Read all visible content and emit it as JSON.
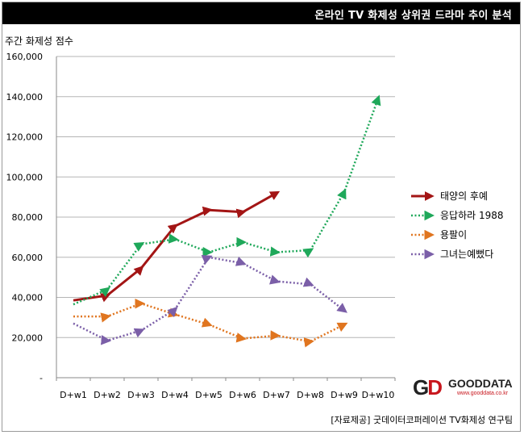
{
  "header": {
    "title": "온라인 TV 화제성 상위권 드라마 추이 분석"
  },
  "logo": {
    "mark": "GD",
    "name": "GOODDATA",
    "url": "www.gooddata.co.kr"
  },
  "source": "[자료제공] 굿데이터코퍼레이션 TV화제성 연구팀",
  "chart_data": {
    "type": "line",
    "title": "온라인 TV 화제성 상위권 드라마 추이 분석",
    "xlabel": "",
    "ylabel": "주간 화제성 점수",
    "categories": [
      "D+w1",
      "D+w2",
      "D+w3",
      "D+w4",
      "D+w5",
      "D+w6",
      "D+w7",
      "D+w8",
      "D+w9",
      "D+w10"
    ],
    "ylim": [
      0,
      160000
    ],
    "yticks": [
      0,
      20000,
      40000,
      60000,
      80000,
      100000,
      120000,
      140000,
      160000
    ],
    "ytick_labels": [
      "-",
      "20,000",
      "40,000",
      "60,000",
      "80,000",
      "100,000",
      "120,000",
      "140,000",
      "160,000"
    ],
    "grid": true,
    "legend_position": "right",
    "series": [
      {
        "name": "태양의 후예",
        "color": "#a31515",
        "style": "solid",
        "values": [
          38500,
          41000,
          54500,
          75500,
          83500,
          82500,
          92000,
          null,
          null,
          null
        ]
      },
      {
        "name": "응답하라 1988",
        "color": "#1fa85a",
        "style": "dotted",
        "values": [
          36500,
          44000,
          66500,
          69000,
          62500,
          67500,
          62500,
          63500,
          92500,
          139000
        ]
      },
      {
        "name": "용팔이",
        "color": "#e0751f",
        "style": "dotted",
        "values": [
          30500,
          30500,
          37000,
          31500,
          26500,
          19500,
          21000,
          18000,
          26500,
          null
        ]
      },
      {
        "name": "그녀는예뻤다",
        "color": "#7b5fa8",
        "style": "dotted",
        "values": [
          27000,
          18500,
          23500,
          34000,
          60000,
          57000,
          48000,
          46500,
          33500,
          null
        ]
      }
    ]
  }
}
